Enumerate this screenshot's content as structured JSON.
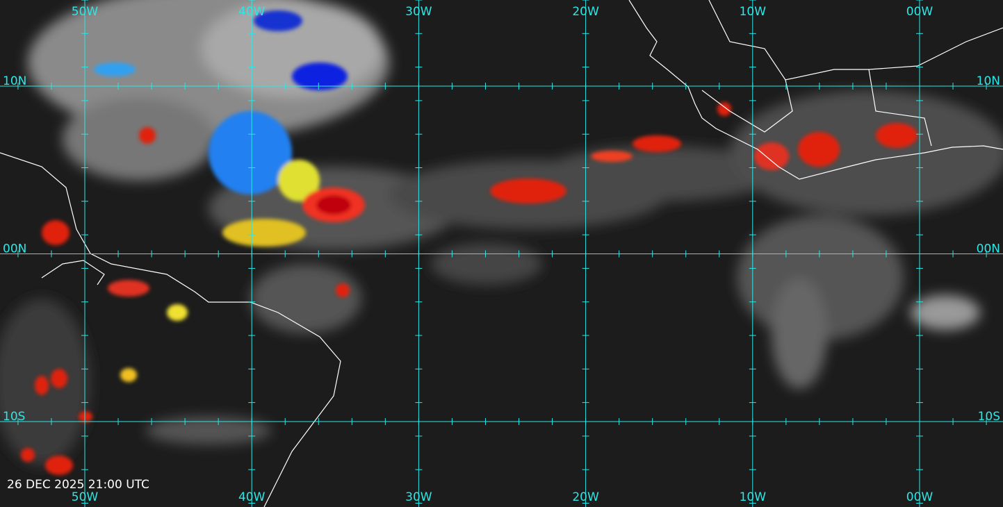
{
  "map": {
    "longitude_labels": [
      "50W",
      "40W",
      "30W",
      "20W",
      "10W",
      "00W"
    ],
    "latitude_labels": [
      "10N",
      "00N",
      "10S"
    ],
    "timestamp": "26 DEC 2025 21:00 UTC"
  }
}
